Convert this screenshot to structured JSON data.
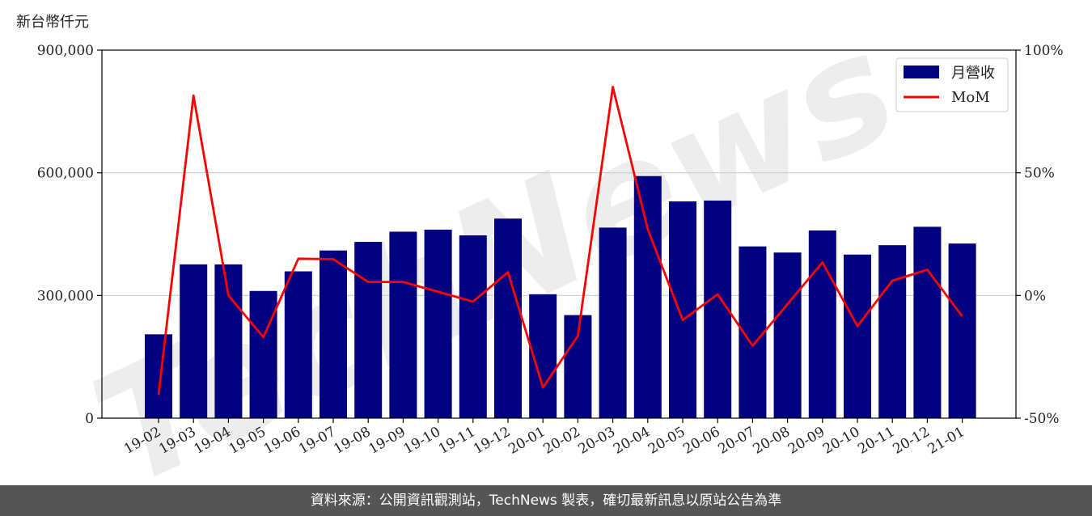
{
  "chart_data": {
    "type": "bar+line",
    "y_unit_label": "新台幣仟元",
    "categories": [
      "19-02",
      "19-03",
      "19-04",
      "19-05",
      "19-06",
      "19-07",
      "19-08",
      "19-09",
      "19-10",
      "19-11",
      "19-12",
      "20-01",
      "20-02",
      "20-03",
      "20-04",
      "20-05",
      "20-06",
      "20-07",
      "20-08",
      "20-09",
      "20-10",
      "20-11",
      "20-12",
      "21-01"
    ],
    "series": [
      {
        "name": "月營收",
        "type": "bar",
        "axis": "left",
        "color": "#000080",
        "values": [
          205000,
          376000,
          376000,
          311000,
          359000,
          410000,
          431000,
          456000,
          461000,
          447000,
          488000,
          303000,
          252000,
          466000,
          592000,
          530000,
          532000,
          420000,
          405000,
          459000,
          400000,
          423000,
          468000,
          427000
        ]
      },
      {
        "name": "MoM",
        "type": "line",
        "axis": "right",
        "color": "#ff0000",
        "values": [
          -40.5,
          81.5,
          0.0,
          -17.0,
          15.0,
          14.8,
          5.5,
          5.5,
          1.5,
          -2.5,
          9.5,
          -37.5,
          -16.5,
          85.0,
          27.0,
          -10.0,
          0.5,
          -20.5,
          -3.5,
          13.5,
          -12.5,
          6.0,
          10.5,
          -8.5
        ]
      }
    ],
    "y_left": {
      "min": 0,
      "max": 900000,
      "ticks": [
        0,
        300000,
        600000,
        900000
      ],
      "tick_labels": [
        "0",
        "300,000",
        "600,000",
        "900,000"
      ]
    },
    "y_right": {
      "min": -50,
      "max": 100,
      "ticks": [
        -50,
        0,
        50,
        100
      ],
      "tick_labels": [
        "-50%",
        "0%",
        "50%",
        "100%"
      ]
    },
    "grid": "horizontal",
    "legend_position": "top-right",
    "watermark": "TechNews"
  },
  "footer": {
    "source_text": "資料來源：公開資訊觀測站，TechNews 製表，確切最新訊息以原站公告為準"
  }
}
